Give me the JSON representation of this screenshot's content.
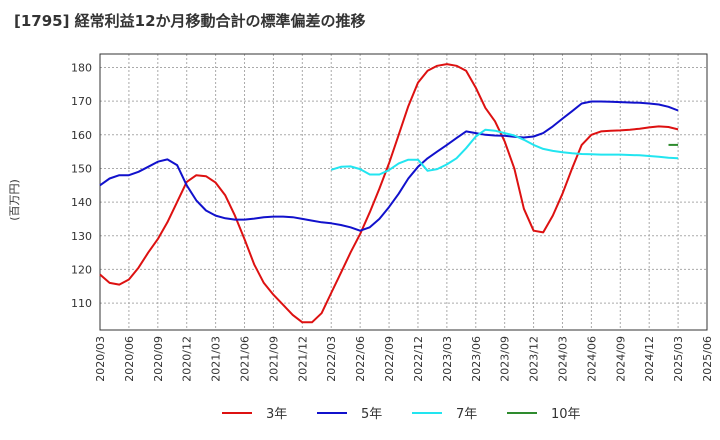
{
  "title": "[1795]  経常利益12か月移動合計の標準偏差の推移",
  "chart_data": {
    "type": "line",
    "title": "[1795]  経常利益12か月移動合計の標準偏差の推移",
    "ylabel": "(百万円)",
    "xlabel": "",
    "x_start": "2020-03",
    "x_end": "2025-06",
    "ylim": [
      102,
      184
    ],
    "yticks": [
      110,
      120,
      130,
      140,
      150,
      160,
      170,
      180
    ],
    "xticks": [
      "2020/03",
      "2020/06",
      "2020/09",
      "2020/12",
      "2021/03",
      "2021/06",
      "2021/09",
      "2021/12",
      "2022/03",
      "2022/06",
      "2022/09",
      "2022/12",
      "2023/03",
      "2023/06",
      "2023/09",
      "2023/12",
      "2024/03",
      "2024/06",
      "2024/09",
      "2024/12",
      "2025/03",
      "2025/06"
    ],
    "grid": true,
    "legend_position": "bottom",
    "series": [
      {
        "name": "3年",
        "color": "#dd1111",
        "points": [
          [
            "2020-03",
            118.5
          ],
          [
            "2020-04",
            116
          ],
          [
            "2020-05",
            115.5
          ],
          [
            "2020-06",
            117
          ],
          [
            "2020-07",
            120.5
          ],
          [
            "2020-08",
            125
          ],
          [
            "2020-09",
            129
          ],
          [
            "2020-10",
            134
          ],
          [
            "2020-11",
            140
          ],
          [
            "2020-12",
            146
          ],
          [
            "2021-01",
            148
          ],
          [
            "2021-02",
            147.7
          ],
          [
            "2021-03",
            145.8
          ],
          [
            "2021-04",
            142
          ],
          [
            "2021-05",
            136
          ],
          [
            "2021-06",
            129
          ],
          [
            "2021-07",
            121.5
          ],
          [
            "2021-08",
            116
          ],
          [
            "2021-09",
            112.5
          ],
          [
            "2021-10",
            109.5
          ],
          [
            "2021-11",
            106.5
          ],
          [
            "2021-12",
            104.3
          ],
          [
            "2022-01",
            104.3
          ],
          [
            "2022-02",
            107
          ],
          [
            "2022-03",
            113
          ],
          [
            "2022-04",
            119
          ],
          [
            "2022-05",
            125
          ],
          [
            "2022-06",
            130.5
          ],
          [
            "2022-07",
            137
          ],
          [
            "2022-08",
            144
          ],
          [
            "2022-09",
            151.5
          ],
          [
            "2022-10",
            160
          ],
          [
            "2022-11",
            168.5
          ],
          [
            "2022-12",
            175.5
          ],
          [
            "2023-01",
            179
          ],
          [
            "2023-02",
            180.5
          ],
          [
            "2023-03",
            181
          ],
          [
            "2023-04",
            180.5
          ],
          [
            "2023-05",
            179
          ],
          [
            "2023-06",
            174
          ],
          [
            "2023-07",
            168
          ],
          [
            "2023-08",
            164
          ],
          [
            "2023-09",
            158
          ],
          [
            "2023-10",
            150
          ],
          [
            "2023-11",
            138
          ],
          [
            "2023-12",
            131.5
          ],
          [
            "2024-01",
            131
          ],
          [
            "2024-02",
            136
          ],
          [
            "2024-03",
            142.5
          ],
          [
            "2024-04",
            150
          ],
          [
            "2024-05",
            157
          ],
          [
            "2024-06",
            160
          ],
          [
            "2024-07",
            161
          ],
          [
            "2024-08",
            161.2
          ],
          [
            "2024-09",
            161.3
          ],
          [
            "2024-10",
            161.5
          ],
          [
            "2024-11",
            161.8
          ],
          [
            "2024-12",
            162.2
          ],
          [
            "2025-01",
            162.5
          ],
          [
            "2025-02",
            162.3
          ],
          [
            "2025-03",
            161.6
          ]
        ]
      },
      {
        "name": "5年",
        "color": "#1111cc",
        "points": [
          [
            "2020-03",
            145
          ],
          [
            "2020-04",
            147
          ],
          [
            "2020-05",
            148
          ],
          [
            "2020-06",
            148
          ],
          [
            "2020-07",
            149
          ],
          [
            "2020-08",
            150.5
          ],
          [
            "2020-09",
            152
          ],
          [
            "2020-10",
            152.7
          ],
          [
            "2020-11",
            151
          ],
          [
            "2020-12",
            145
          ],
          [
            "2021-01",
            140.5
          ],
          [
            "2021-02",
            137.5
          ],
          [
            "2021-03",
            136
          ],
          [
            "2021-04",
            135.2
          ],
          [
            "2021-05",
            134.8
          ],
          [
            "2021-06",
            134.8
          ],
          [
            "2021-07",
            135.1
          ],
          [
            "2021-08",
            135.5
          ],
          [
            "2021-09",
            135.7
          ],
          [
            "2021-10",
            135.7
          ],
          [
            "2021-11",
            135.5
          ],
          [
            "2021-12",
            135
          ],
          [
            "2022-01",
            134.5
          ],
          [
            "2022-02",
            134
          ],
          [
            "2022-03",
            133.7
          ],
          [
            "2022-04",
            133.2
          ],
          [
            "2022-05",
            132.5
          ],
          [
            "2022-06",
            131.5
          ],
          [
            "2022-07",
            132.5
          ],
          [
            "2022-08",
            135
          ],
          [
            "2022-09",
            138.5
          ],
          [
            "2022-10",
            142.5
          ],
          [
            "2022-11",
            147
          ],
          [
            "2022-12",
            150.5
          ],
          [
            "2023-01",
            153
          ],
          [
            "2023-02",
            155
          ],
          [
            "2023-03",
            157
          ],
          [
            "2023-04",
            159
          ],
          [
            "2023-05",
            161
          ],
          [
            "2023-06",
            160.5
          ],
          [
            "2023-07",
            160
          ],
          [
            "2023-08",
            159.8
          ],
          [
            "2023-09",
            159.7
          ],
          [
            "2023-10",
            159.4
          ],
          [
            "2023-11",
            159.2
          ],
          [
            "2023-12",
            159.5
          ],
          [
            "2024-01",
            160.5
          ],
          [
            "2024-02",
            162.5
          ],
          [
            "2024-03",
            164.8
          ],
          [
            "2024-04",
            167
          ],
          [
            "2024-05",
            169.3
          ],
          [
            "2024-06",
            169.9
          ],
          [
            "2024-07",
            169.9
          ],
          [
            "2024-08",
            169.8
          ],
          [
            "2024-09",
            169.7
          ],
          [
            "2024-10",
            169.6
          ],
          [
            "2024-11",
            169.5
          ],
          [
            "2024-12",
            169.3
          ],
          [
            "2025-01",
            169
          ],
          [
            "2025-02",
            168.3
          ],
          [
            "2025-03",
            167.2
          ]
        ]
      },
      {
        "name": "7年",
        "color": "#22e5f0",
        "points": [
          [
            "2022-03",
            149.6
          ],
          [
            "2022-04",
            150.5
          ],
          [
            "2022-05",
            150.6
          ],
          [
            "2022-06",
            149.8
          ],
          [
            "2022-07",
            148.2
          ],
          [
            "2022-08",
            148.2
          ],
          [
            "2022-09",
            149.5
          ],
          [
            "2022-10",
            151.5
          ],
          [
            "2022-11",
            152.6
          ],
          [
            "2022-12",
            152.6
          ],
          [
            "2023-01",
            149.3
          ],
          [
            "2023-02",
            149.8
          ],
          [
            "2023-03",
            151.2
          ],
          [
            "2023-04",
            153
          ],
          [
            "2023-05",
            156
          ],
          [
            "2023-06",
            159.5
          ],
          [
            "2023-07",
            161.5
          ],
          [
            "2023-08",
            161.2
          ],
          [
            "2023-09",
            160.5
          ],
          [
            "2023-10",
            159.8
          ],
          [
            "2023-11",
            158.5
          ],
          [
            "2023-12",
            157
          ],
          [
            "2024-01",
            155.8
          ],
          [
            "2024-02",
            155.2
          ],
          [
            "2024-03",
            154.8
          ],
          [
            "2024-04",
            154.5
          ],
          [
            "2024-05",
            154.3
          ],
          [
            "2024-06",
            154.2
          ],
          [
            "2024-07",
            154.1
          ],
          [
            "2024-08",
            154.1
          ],
          [
            "2024-09",
            154.1
          ],
          [
            "2024-10",
            154
          ],
          [
            "2024-11",
            153.9
          ],
          [
            "2024-12",
            153.7
          ],
          [
            "2025-01",
            153.5
          ],
          [
            "2025-02",
            153.2
          ],
          [
            "2025-03",
            153
          ]
        ]
      },
      {
        "name": "10年",
        "color": "#2e8b2e",
        "points": [
          [
            "2025-02",
            157
          ],
          [
            "2025-03",
            157
          ]
        ]
      }
    ]
  }
}
